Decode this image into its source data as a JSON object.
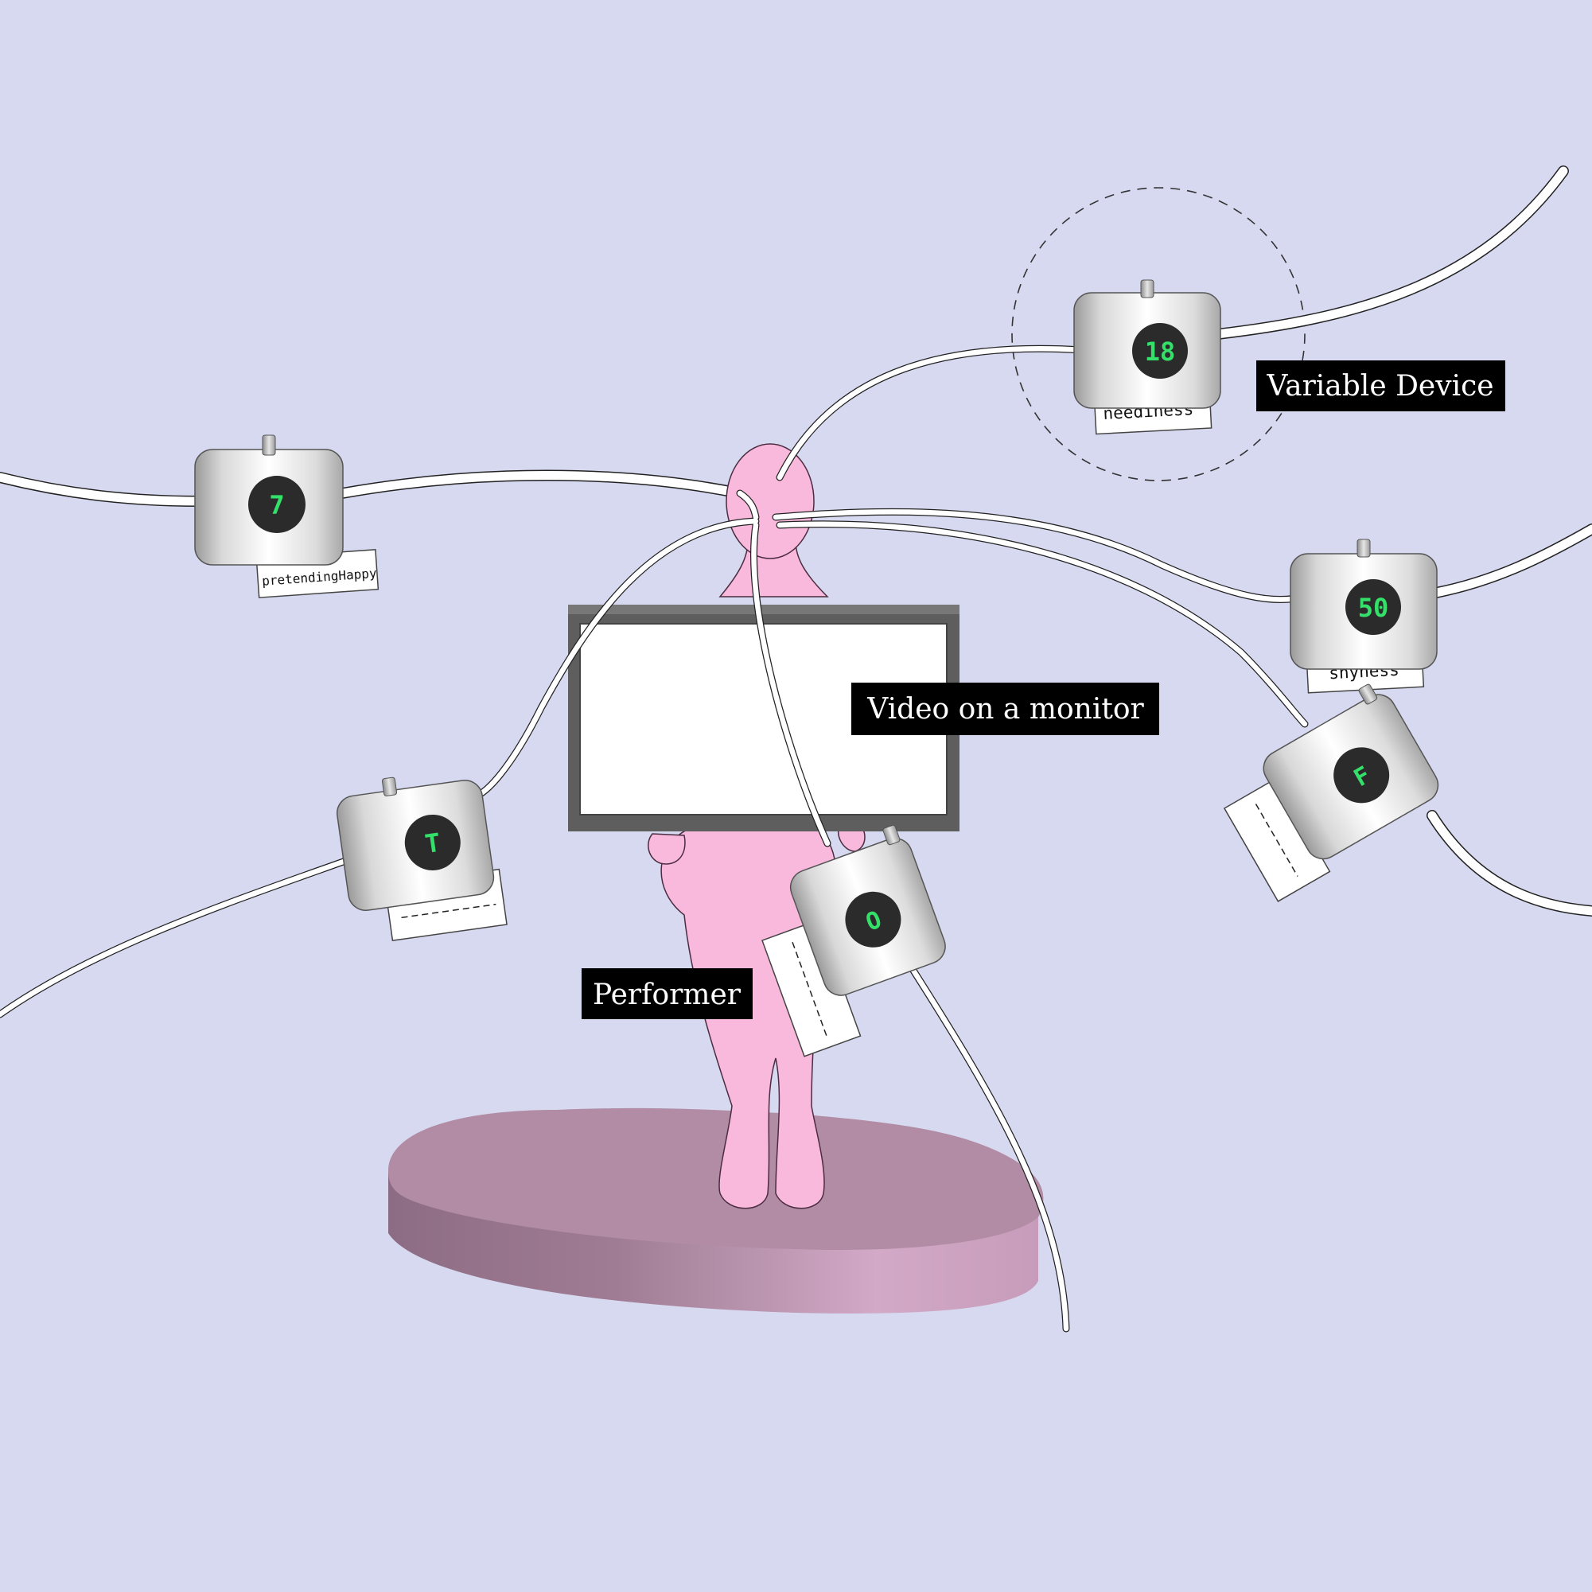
{
  "labels": {
    "variable_device": "Variable Device",
    "video_monitor": "Video on a monitor",
    "performer": "Performer"
  },
  "devices": [
    {
      "id": "pretending-happy",
      "value": "7",
      "tag": "pretendingHappy"
    },
    {
      "id": "neediness",
      "value": "18",
      "tag": "neediness"
    },
    {
      "id": "shyness",
      "value": "50",
      "tag": "shyness"
    },
    {
      "id": "left-lower",
      "value": "T",
      "tag": ""
    },
    {
      "id": "center-lower",
      "value": "O",
      "tag": ""
    },
    {
      "id": "right-lower",
      "value": "F",
      "tag": ""
    }
  ],
  "colors": {
    "background": "#d6d9f0",
    "performer": "#f9b9dd",
    "platform": "#b18ca4",
    "display_digits": "#34e06a",
    "label_bg": "#000000"
  }
}
